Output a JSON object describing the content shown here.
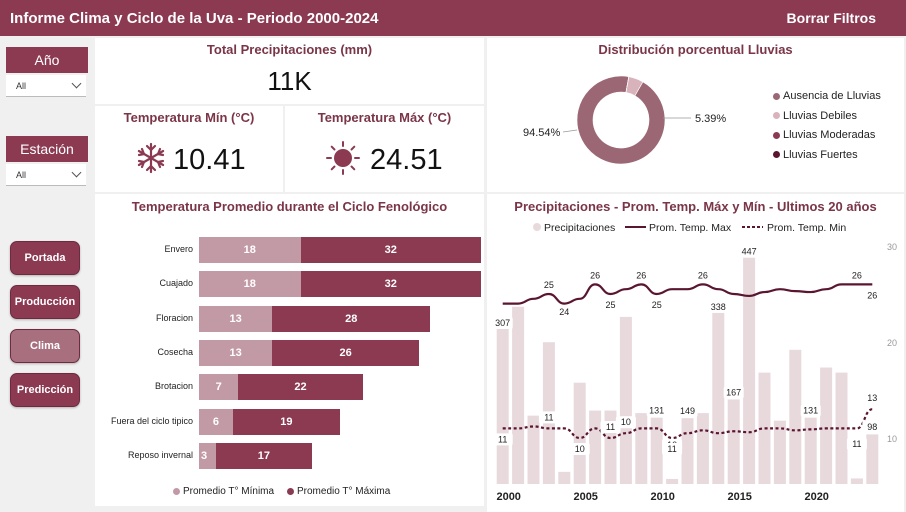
{
  "header": {
    "title": "Informe Clima y Ciclo de la Uva  -  Periodo 2000-2024",
    "clear_filters": "Borrar Filtros"
  },
  "filters": {
    "year": {
      "label": "Año",
      "value": "All"
    },
    "station": {
      "label": "Estación",
      "value": "All"
    }
  },
  "nav": [
    {
      "label": "Portada",
      "active": false
    },
    {
      "label": "Producción",
      "active": false
    },
    {
      "label": "Clima",
      "active": true
    },
    {
      "label": "Predicción",
      "active": false
    }
  ],
  "kpis": {
    "precip_title": "Total Precipitaciones (mm)",
    "precip_value": "11K",
    "tmin_title": "Temperatura Mín (°C)",
    "tmin_value": "10.41",
    "tmax_title": "Temperatura Máx (°C)",
    "tmax_value": "24.51"
  },
  "colors": {
    "primary": "#8b3a52",
    "light": "#c29aa6",
    "bars_light": "#e8d9dc",
    "dark": "#5a1530"
  },
  "icons": {
    "tmin": "snowflake-icon",
    "tmax": "sun-icon"
  },
  "chart_data": [
    {
      "type": "pie",
      "title": "Distribución porcentual Lluvias",
      "categories": [
        "Ausencia de Lluvias",
        "Lluvias Debiles",
        "Lluvias Moderadas",
        "Lluvias Fuertes"
      ],
      "values": [
        94.54,
        5.39,
        0.05,
        0.02
      ],
      "colors": [
        "#9b6775",
        "#d8b3bc",
        "#8b3a52",
        "#5a1530"
      ],
      "labels": [
        "94.54%",
        "5.39%"
      ],
      "legend": "right"
    },
    {
      "type": "bar",
      "title": "Temperatura Promedio durante el Ciclo Fenológico",
      "categories": [
        "Envero",
        "Cuajado",
        "Floracion",
        "Cosecha",
        "Brotacion",
        "Fuera del ciclo tipico",
        "Reposo invernal"
      ],
      "series": [
        {
          "name": "Promedio T° Mínima",
          "values": [
            18,
            18,
            13,
            13,
            7,
            6,
            3
          ]
        },
        {
          "name": "Promedio T° Máxima",
          "values": [
            32,
            32,
            28,
            26,
            22,
            19,
            17
          ]
        }
      ],
      "stacked": true,
      "legend": "bottom"
    },
    {
      "type": "bar",
      "title": "Precipitaciones - Prom. Temp. Máx y Mín - Ultimos 20 años",
      "x": [
        2000,
        2001,
        2002,
        2003,
        2004,
        2005,
        2006,
        2007,
        2008,
        2009,
        2010,
        2011,
        2012,
        2013,
        2014,
        2015,
        2016,
        2017,
        2018,
        2019,
        2020,
        2021,
        2022,
        2023,
        2024
      ],
      "xticks": [
        "2000",
        "2005",
        "2010",
        "2015",
        "2020"
      ],
      "y2ticks": [
        "30",
        "20",
        "10"
      ],
      "series": [
        {
          "name": "Precipitaciones",
          "type": "bar",
          "values": [
            307,
            350,
            135,
            280,
            24,
            200,
            145,
            145,
            330,
            140,
            131,
            10,
            130,
            140,
            338,
            167,
            447,
            220,
            125,
            265,
            131,
            230,
            220,
            11,
            98
          ]
        },
        {
          "name": "Prom. Temp. Max",
          "type": "line",
          "values": [
            24,
            24,
            24.5,
            25,
            24,
            24.5,
            26,
            25,
            25.5,
            26,
            25,
            25.5,
            25.5,
            26,
            25.5,
            25,
            24.8,
            25.2,
            25.5,
            25.3,
            25.2,
            25.5,
            26,
            26,
            26
          ]
        },
        {
          "name": "Prom. Temp. Min",
          "type": "line",
          "style": "dashed",
          "values": [
            11,
            11,
            11.2,
            11,
            11,
            10,
            11,
            10,
            10.5,
            11,
            11,
            10,
            10.5,
            10.8,
            10.5,
            10.7,
            10.6,
            11,
            11,
            10.8,
            10.9,
            11,
            11,
            11,
            13
          ]
        }
      ],
      "bar_labels": [
        "307",
        "24",
        "338",
        "447",
        "167",
        "131",
        "149",
        "131",
        "98",
        "11",
        "10"
      ],
      "line_labels_max": [
        "25",
        "26",
        "25",
        "26",
        "25",
        "26",
        "26",
        "26"
      ],
      "line_labels_min": [
        "11",
        "11",
        "10",
        "11",
        "10",
        "11",
        "13"
      ],
      "legend": "top"
    }
  ]
}
